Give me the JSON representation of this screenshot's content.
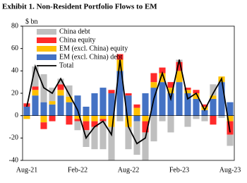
{
  "chart_data": {
    "type": "bar",
    "title": "Exhibit 1. Non-Resident Portfolio Flows to EM",
    "y_label": "$ bn",
    "categories": [
      "Aug-21",
      null,
      null,
      null,
      null,
      null,
      "Feb-22",
      null,
      null,
      null,
      null,
      null,
      "Aug-22",
      null,
      null,
      null,
      null,
      null,
      "Feb-23",
      null,
      null,
      null,
      null,
      null,
      "Aug-23"
    ],
    "stacked": true,
    "series": [
      {
        "name": "China debt",
        "color": "#bfbfbf",
        "values": [
          0,
          18,
          25,
          12,
          5,
          10,
          -8,
          -15,
          -20,
          -25,
          -30,
          -5,
          -20,
          -30,
          -25,
          -23,
          -5,
          -15,
          2,
          -10,
          -3,
          -5,
          10,
          -2,
          -10
        ]
      },
      {
        "name": "China equity",
        "color": "#ff2a2a",
        "values": [
          3,
          3,
          -6,
          -5,
          5,
          -8,
          -2,
          -8,
          -5,
          -2,
          3,
          5,
          2,
          3,
          -10,
          8,
          5,
          5,
          8,
          2,
          3,
          2,
          -8,
          0,
          -12
        ]
      },
      {
        "name": "EM (excl. China) equity",
        "color": "#ffc000",
        "values": [
          -3,
          5,
          -6,
          3,
          5,
          5,
          -3,
          -5,
          -5,
          -3,
          -10,
          10,
          -10,
          7,
          -5,
          5,
          8,
          5,
          10,
          3,
          5,
          3,
          3,
          5,
          -5
        ]
      },
      {
        "name": "EM (excl. China) debt",
        "color": "#4472c4",
        "values": [
          8,
          18,
          12,
          10,
          18,
          12,
          18,
          8,
          20,
          25,
          20,
          40,
          18,
          -5,
          20,
          25,
          30,
          20,
          30,
          20,
          15,
          5,
          15,
          30,
          12
        ]
      }
    ],
    "line": {
      "name": "Total",
      "color": "#000000",
      "values": [
        8,
        44,
        25,
        20,
        33,
        19,
        5,
        -20,
        -10,
        -5,
        -17,
        50,
        -10,
        -25,
        -20,
        15,
        38,
        15,
        50,
        15,
        20,
        5,
        20,
        33,
        -15
      ]
    },
    "ylim": [
      -40,
      80
    ],
    "yticks": [
      -40,
      -20,
      0,
      20,
      40,
      60,
      80
    ],
    "grid": false,
    "legend": "top-left"
  }
}
